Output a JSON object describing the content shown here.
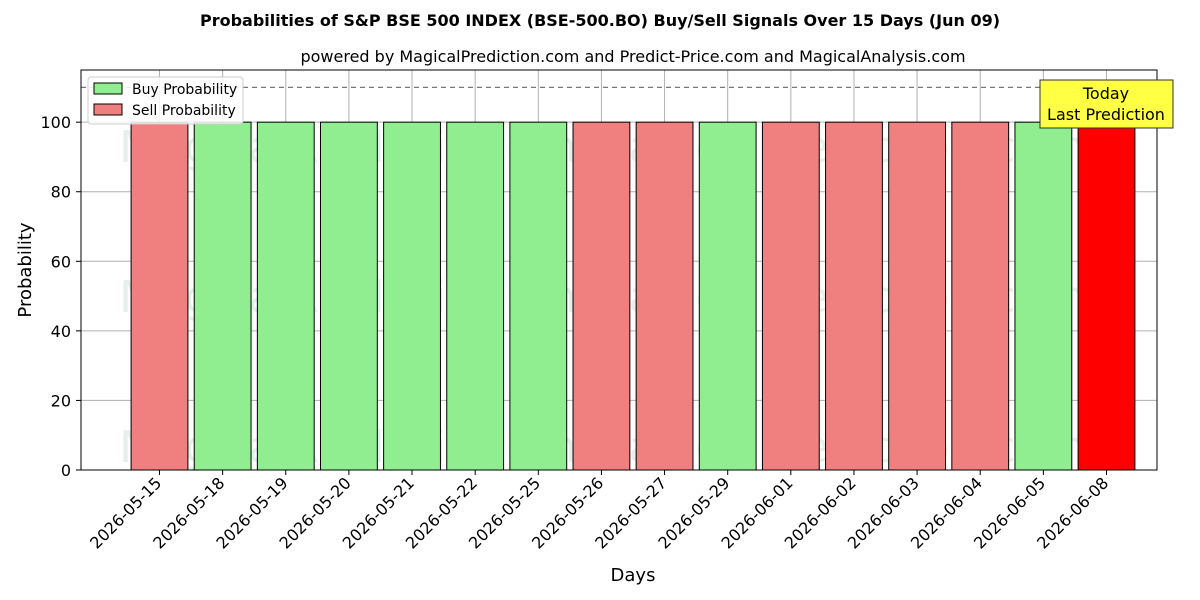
{
  "chart_data": {
    "type": "bar",
    "title": "Probabilities of S&P BSE 500 INDEX (BSE-500.BO) Buy/Sell Signals Over 15 Days (Jun 09)",
    "subtitle": "powered by MagicalPrediction.com and Predict-Price.com and MagicalAnalysis.com",
    "xlabel": "Days",
    "ylabel": "Probability",
    "ylim": [
      0,
      115
    ],
    "yticks": [
      0,
      20,
      40,
      60,
      80,
      100
    ],
    "grid": true,
    "reference_line": 110,
    "legend_position": "top-left",
    "categories": [
      "2026-05-15",
      "2026-05-18",
      "2026-05-19",
      "2026-05-20",
      "2026-05-21",
      "2026-05-22",
      "2026-05-25",
      "2026-05-26",
      "2026-05-27",
      "2026-05-29",
      "2026-06-01",
      "2026-06-02",
      "2026-06-03",
      "2026-06-04",
      "2026-06-05",
      "2026-06-08"
    ],
    "values": [
      100,
      100,
      100,
      100,
      100,
      100,
      100,
      100,
      100,
      100,
      100,
      100,
      100,
      100,
      100,
      100
    ],
    "signals": [
      "sell",
      "buy",
      "buy",
      "buy",
      "buy",
      "buy",
      "buy",
      "sell",
      "sell",
      "buy",
      "sell",
      "sell",
      "sell",
      "sell",
      "buy",
      "sell"
    ],
    "highlight_last": true,
    "series": [
      {
        "name": "Buy Probability",
        "color": "#90ee90"
      },
      {
        "name": "Sell Probability",
        "color": "#f08080"
      }
    ],
    "highlight_color": "#ff0000",
    "annotation": {
      "line1": "Today",
      "line2": "Last Prediction",
      "color": "#ffff44"
    },
    "watermarks": [
      "MagicalAnalysis.com",
      "MagicalPrediction.com"
    ]
  }
}
